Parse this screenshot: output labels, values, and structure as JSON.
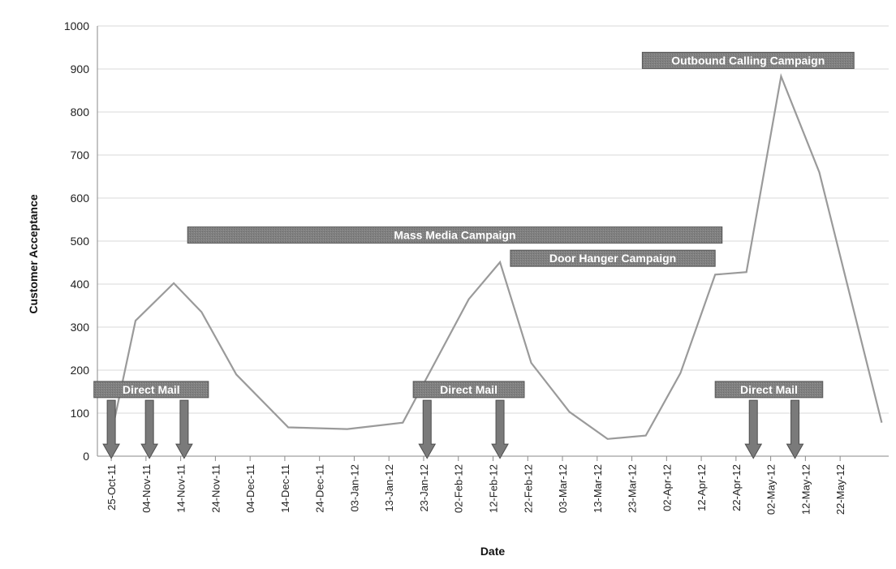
{
  "chart_data": {
    "type": "line",
    "title": "",
    "xlabel": "Date",
    "ylabel": "Customer Acceptance",
    "ylim": [
      0,
      1000
    ],
    "yticks": [
      0,
      100,
      200,
      300,
      400,
      500,
      600,
      700,
      800,
      900,
      1000
    ],
    "xlim": [
      "2011-10-21",
      "2012-06-05"
    ],
    "xtick_dates": [
      "2011-10-25",
      "2011-11-04",
      "2011-11-14",
      "2011-11-24",
      "2011-12-04",
      "2011-12-14",
      "2011-12-24",
      "2012-01-03",
      "2012-01-13",
      "2012-01-23",
      "2012-02-02",
      "2012-02-12",
      "2012-02-22",
      "2012-03-03",
      "2012-03-13",
      "2012-03-23",
      "2012-04-02",
      "2012-04-12",
      "2012-04-22",
      "2012-05-02",
      "2012-05-12",
      "2012-05-22"
    ],
    "xtick_labels": [
      "25-Oct-11",
      "04-Nov-11",
      "14-Nov-11",
      "24-Nov-11",
      "04-Dec-11",
      "14-Dec-11",
      "24-Dec-11",
      "03-Jan-12",
      "13-Jan-12",
      "23-Jan-12",
      "02-Feb-12",
      "12-Feb-12",
      "22-Feb-12",
      "03-Mar-12",
      "13-Mar-12",
      "23-Mar-12",
      "02-Apr-12",
      "12-Apr-12",
      "22-Apr-12",
      "02-May-12",
      "12-May-12",
      "22-May-12"
    ],
    "grid": true,
    "series": [
      {
        "x": [
          "2011-10-25",
          "2011-11-01",
          "2011-11-12",
          "2011-11-20",
          "2011-11-30",
          "2011-12-15",
          "2012-01-01",
          "2012-01-17",
          "2012-02-05",
          "2012-02-14",
          "2012-02-23",
          "2012-03-05",
          "2012-03-16",
          "2012-03-27",
          "2012-04-06",
          "2012-04-16",
          "2012-04-25",
          "2012-05-05",
          "2012-05-16",
          "2012-06-03"
        ],
        "y": [
          50,
          315,
          402,
          335,
          190,
          67,
          63,
          78,
          365,
          451,
          217,
          103,
          40,
          48,
          193,
          422,
          428,
          883,
          660,
          78
        ]
      }
    ],
    "annotations": {
      "campaigns": [
        {
          "label": "Mass Media Campaign",
          "start": "2011-11-16",
          "end": "2012-04-18",
          "y": 514
        },
        {
          "label": "Door Hanger Campaign",
          "start": "2012-02-17",
          "end": "2012-04-16",
          "y": 460
        },
        {
          "label": "Outbound Calling Campaign",
          "start": "2012-03-26",
          "end": "2012-05-26",
          "y": 920
        }
      ],
      "direct_mail": [
        {
          "label": "Direct Mail",
          "start": "2011-10-20",
          "end": "2011-11-22",
          "y": 155
        },
        {
          "label": "Direct Mail",
          "start": "2012-01-20",
          "end": "2012-02-21",
          "y": 155
        },
        {
          "label": "Direct Mail",
          "start": "2012-04-16",
          "end": "2012-05-17",
          "y": 155
        }
      ],
      "mail_drops": [
        "2011-10-25",
        "2011-11-05",
        "2011-11-15",
        "2012-01-24",
        "2012-02-14",
        "2012-04-27",
        "2012-05-09"
      ]
    }
  }
}
